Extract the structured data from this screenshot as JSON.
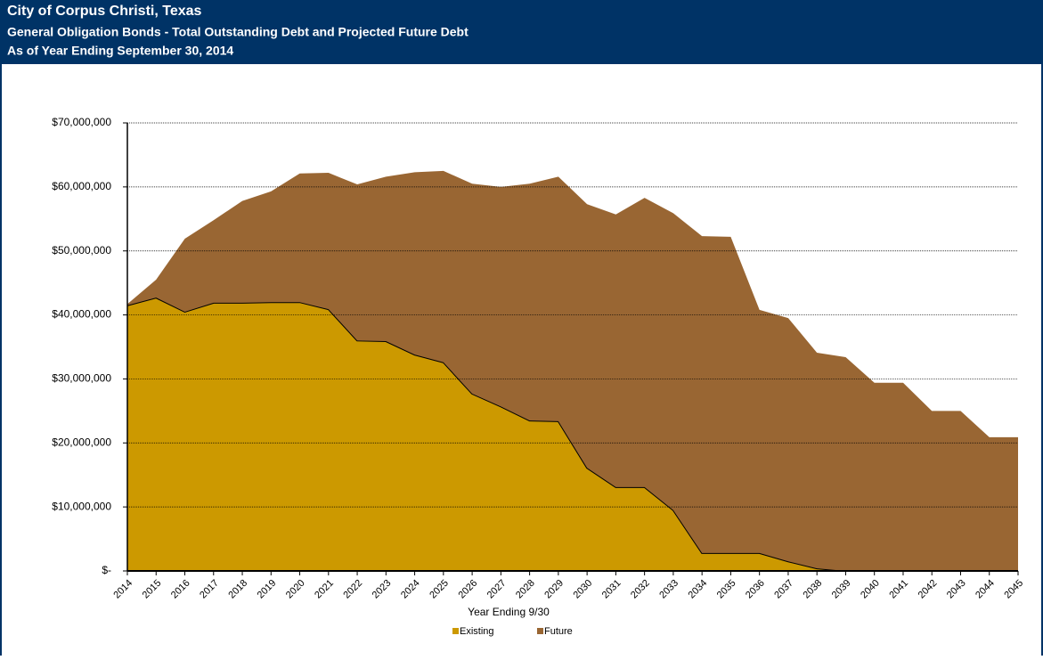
{
  "chart_data": {
    "type": "stacked_area",
    "title": "City of Corpus Christi, Texas",
    "subtitle": [
      "General Obligation Bonds - Total Outstanding Debt and Projected Future Debt",
      "As of Year Ending September 30, 2014"
    ],
    "xlabel": "Year Ending 9/30",
    "categories": [
      "2014",
      "2015",
      "2016",
      "2017",
      "2018",
      "2019",
      "2020",
      "2021",
      "2022",
      "2023",
      "2024",
      "2025",
      "2026",
      "2027",
      "2028",
      "2029",
      "2030",
      "2031",
      "2032",
      "2033",
      "2034",
      "2035",
      "2036",
      "2037",
      "2038",
      "2039",
      "2040",
      "2041",
      "2042",
      "2043",
      "2044",
      "2045"
    ],
    "series": [
      {
        "name": "Existing",
        "color": "#cc9900",
        "line_color": "#000000",
        "values": [
          41500000,
          42700000,
          40500000,
          41900000,
          41900000,
          42000000,
          42000000,
          40900000,
          36000000,
          35900000,
          33800000,
          32600000,
          27700000,
          25700000,
          23500000,
          23400000,
          16100000,
          13100000,
          13100000,
          9500000,
          2800000,
          2800000,
          2800000,
          1500000,
          400000,
          0,
          0,
          0,
          0,
          0,
          0,
          0
        ]
      },
      {
        "name": "Future",
        "color": "#996633",
        "values": [
          200000,
          2800000,
          11400000,
          12900000,
          15900000,
          17300000,
          20100000,
          21300000,
          24400000,
          25700000,
          28500000,
          29900000,
          32800000,
          34300000,
          37000000,
          38200000,
          41200000,
          42600000,
          45200000,
          46400000,
          49500000,
          49400000,
          38000000,
          38000000,
          33700000,
          33400000,
          29400000,
          29400000,
          25000000,
          25000000,
          20900000,
          20900000
        ]
      }
    ],
    "ylim": [
      0,
      70000000
    ],
    "yticks": [
      {
        "value": 0,
        "label": "$-"
      },
      {
        "value": 10000000,
        "label": "$10,000,000"
      },
      {
        "value": 20000000,
        "label": "$20,000,000"
      },
      {
        "value": 30000000,
        "label": "$30,000,000"
      },
      {
        "value": 40000000,
        "label": "$40,000,000"
      },
      {
        "value": 50000000,
        "label": "$50,000,000"
      },
      {
        "value": 60000000,
        "label": "$60,000,000"
      },
      {
        "value": 70000000,
        "label": "$70,000,000"
      }
    ],
    "grid": true,
    "legend": "bottom"
  }
}
